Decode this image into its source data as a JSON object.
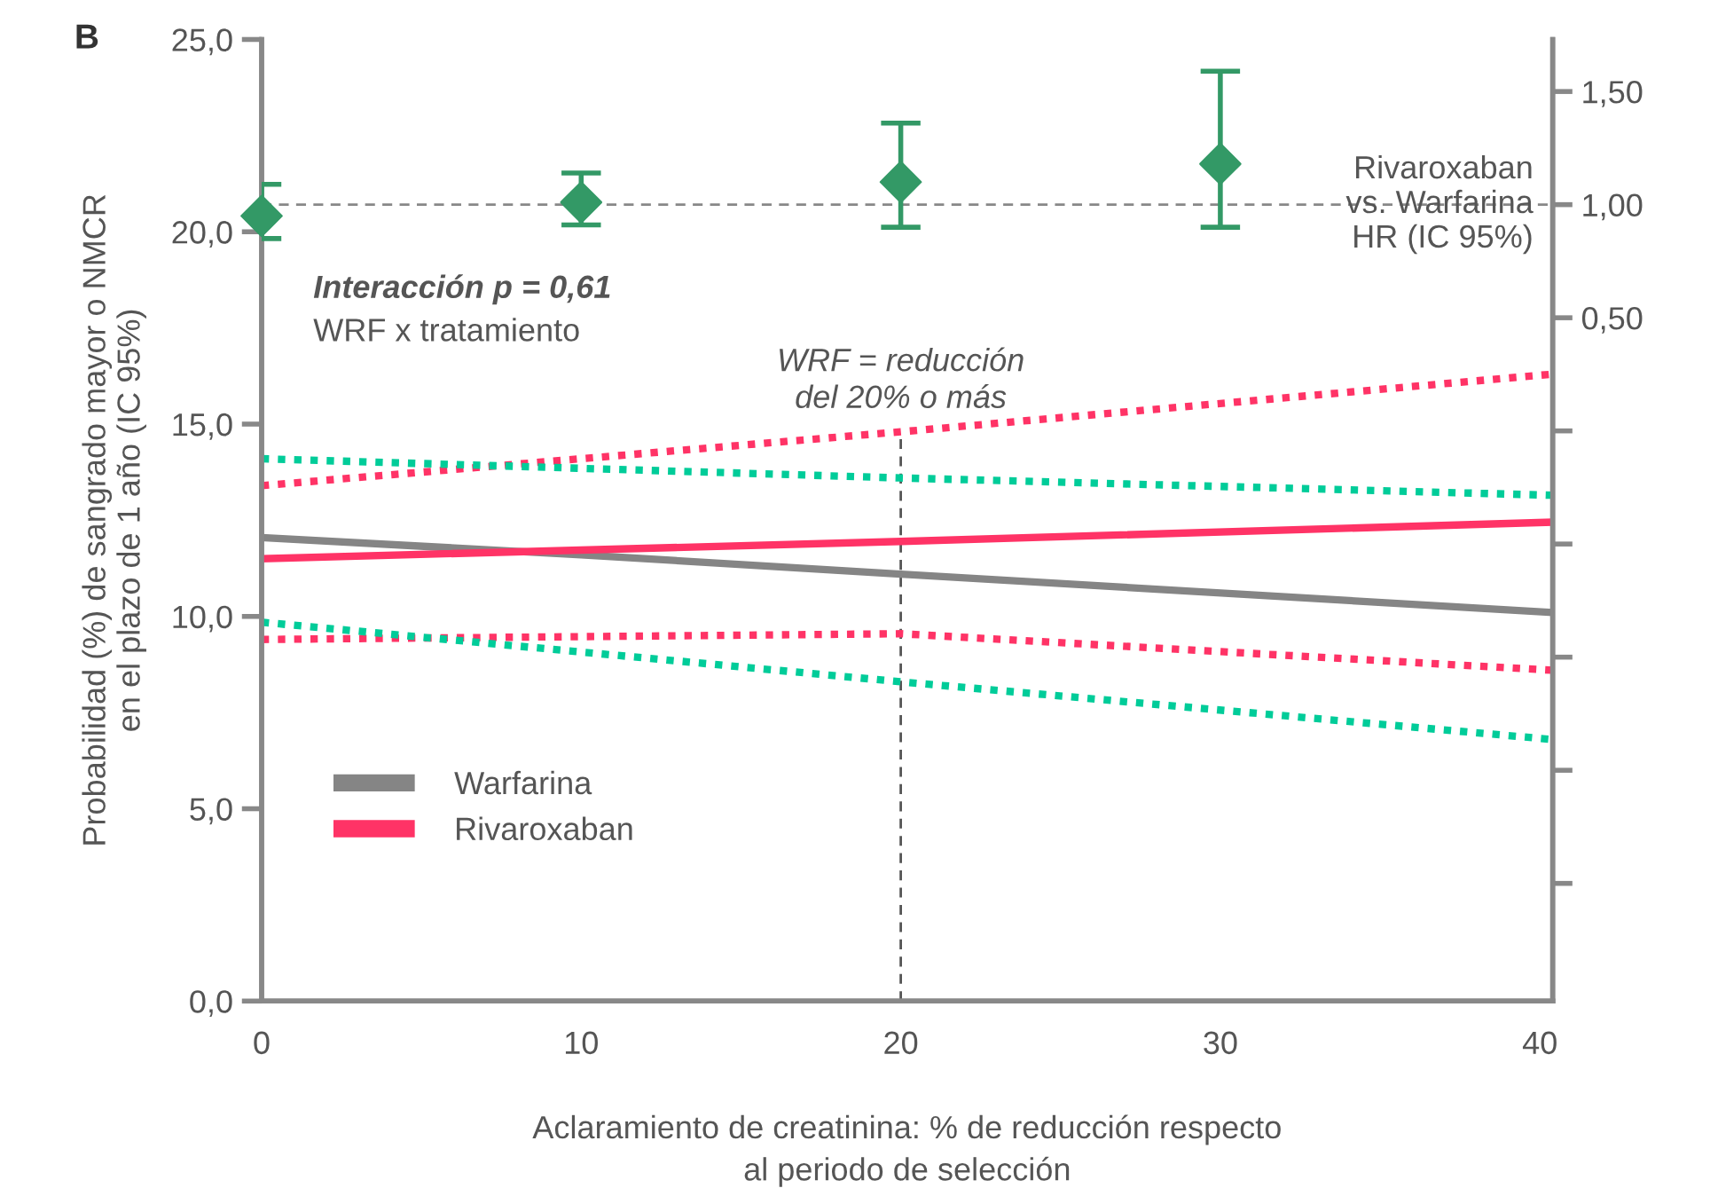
{
  "chart_data": {
    "type": "line",
    "xlabel": "Aclaramiento de creatinina: % de reducción respecto\nal periodo de selección",
    "ylabel": "Probabilidad (%) de sangrado mayor o NMCR\nen el plazo de 1 año (IC 95%)",
    "y2label": "Rivaroxaban\nvs. Warfarina\nHR (IC 95%)",
    "annotations": [
      "B",
      "Interacción p = 0,61",
      "WRF x tratamiento"
    ],
    "xlim": [
      0,
      40.4
    ],
    "xticks": [
      0,
      10,
      20,
      30,
      40
    ],
    "ylim": [
      0,
      25
    ],
    "yticks": [
      {
        "value": 0,
        "label": "0,0"
      },
      {
        "value": 5,
        "label": "5,0"
      },
      {
        "value": 10,
        "label": "10,0"
      },
      {
        "value": 15,
        "label": "15,0"
      },
      {
        "value": 20,
        "label": "20,0"
      },
      {
        "value": 25,
        "label": "25,0"
      }
    ],
    "y2lim": [
      -2.52,
      1.73
    ],
    "y2ticks": [
      {
        "value": -2.0,
        "label": null
      },
      {
        "value": -1.5,
        "label": null
      },
      {
        "value": -1.0,
        "label": null
      },
      {
        "value": -0.5,
        "label": null
      },
      {
        "value": 0.0,
        "label": null
      },
      {
        "value": 0.5,
        "label": "0,50"
      },
      {
        "value": 1.0,
        "label": "1,00"
      },
      {
        "value": 1.5,
        "label": "1,50"
      }
    ],
    "grid": false,
    "legend": "center left",
    "series": [
      {
        "name": "Warfarina",
        "color": "#858585",
        "line_style": "solid",
        "x": [
          0,
          10,
          20,
          40.4
        ],
        "values": [
          12.05,
          11.6,
          11.1,
          10.1
        ]
      },
      {
        "name": "Rivaroxaban",
        "color": "#ff3366",
        "line_style": "solid",
        "x": [
          0,
          20,
          40.4
        ],
        "values": [
          11.5,
          11.95,
          12.45
        ]
      },
      {
        "color": "#ff3366",
        "line_style": "dotted",
        "x": [
          0,
          20,
          40.4
        ],
        "values": [
          13.4,
          14.8,
          16.3
        ]
      },
      {
        "color": "#ff3366",
        "line_style": "dotted",
        "x": [
          0,
          20,
          40.4
        ],
        "values": [
          9.4,
          9.55,
          8.6
        ]
      },
      {
        "color": "#00cc99",
        "line_style": "dotted",
        "x": [
          0,
          20,
          40.4
        ],
        "values": [
          14.1,
          13.6,
          13.15
        ]
      },
      {
        "color": "#00cc99",
        "line_style": "dotted",
        "x": [
          0,
          20,
          40.4
        ],
        "values": [
          9.85,
          8.3,
          6.8
        ]
      },
      {
        "type": "scatter",
        "axis": "y2",
        "marker": "diamond",
        "color": "#339966",
        "x": [
          0,
          10,
          20,
          30
        ],
        "values": [
          0.95,
          1.01,
          1.1,
          1.18
        ],
        "errors": [
          [
            0.85,
            1.09
          ],
          [
            0.91,
            1.14
          ],
          [
            0.9,
            1.36
          ],
          [
            0.9,
            1.59
          ]
        ]
      }
    ],
    "ref_lines": [
      {
        "axis": "y2",
        "value": 1.0,
        "color": "#888888",
        "line_style": "dashed"
      },
      {
        "axis": "x",
        "value": 20,
        "label": "WRF = reducción\ndel 20% o más",
        "color": "#555555",
        "line_style": "dashed"
      }
    ]
  }
}
